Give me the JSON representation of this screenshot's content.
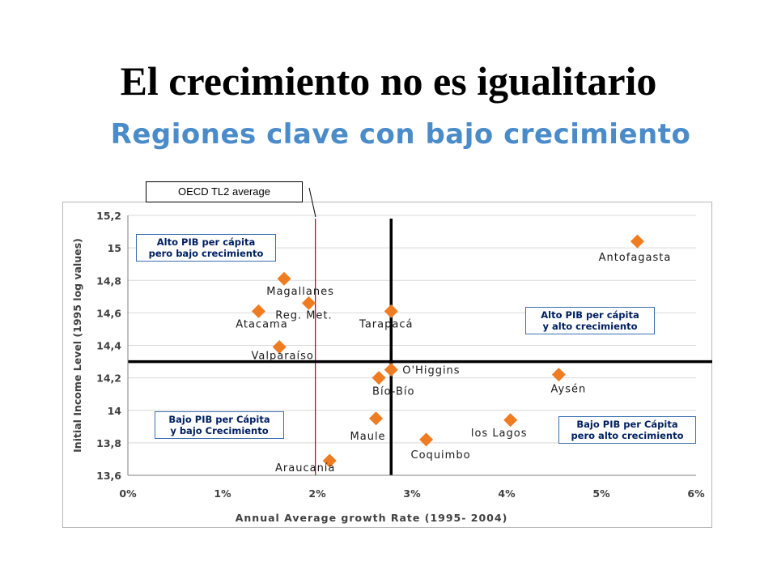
{
  "title": "El crecimiento no es igualitario",
  "subtitle": "Regiones clave con bajo crecimiento",
  "annotation_oecd": "OECD TL2 average",
  "quadrants": {
    "top_left": [
      "Alto PIB per cápita",
      "pero bajo crecimiento"
    ],
    "top_right": [
      "Alto PIB per cápita",
      "y alto crecimiento"
    ],
    "bottom_left": [
      "Bajo PIB per Cápita",
      "y bajo Crecimiento"
    ],
    "bottom_right": [
      "Bajo PIB per Cápita",
      "pero alto crecimiento"
    ]
  },
  "colors": {
    "marker": "#f07c22",
    "oecd_line": "#c00000",
    "grid": "#d9d9d9",
    "box_border": "#3a6fb0"
  },
  "chart_data": {
    "type": "scatter",
    "xlabel": "Annual Average growth Rate (1995- 2004)",
    "ylabel": "Initial Income Level (1995 log values)",
    "xlim": [
      0,
      6
    ],
    "ylim": [
      13.6,
      15.2
    ],
    "x_ticks": [
      0,
      1,
      2,
      3,
      4,
      5,
      6
    ],
    "x_tick_labels": [
      "0%",
      "1%",
      "2%",
      "3%",
      "4%",
      "5%",
      "6%"
    ],
    "y_ticks": [
      13.6,
      13.8,
      14,
      14.2,
      14.4,
      14.6,
      14.8,
      15,
      15.2
    ],
    "y_tick_labels": [
      "13,6",
      "13,8",
      "14",
      "14,2",
      "14,4",
      "14,6",
      "14,8",
      "15",
      "15,2"
    ],
    "grid": "horizontal",
    "reference_lines": {
      "oecd_x": 1.98,
      "vertical_x": 2.78,
      "horizontal_y": 14.3
    },
    "points": [
      {
        "label": "Antofagasta",
        "x": 5.38,
        "y": 15.04
      },
      {
        "label": "Magallanes",
        "x": 1.65,
        "y": 14.81
      },
      {
        "label": "Reg. Met.",
        "x": 1.91,
        "y": 14.66
      },
      {
        "label": "Atacama",
        "x": 1.38,
        "y": 14.61
      },
      {
        "label": "Tarapacá",
        "x": 2.78,
        "y": 14.61
      },
      {
        "label": "Valparaíso",
        "x": 1.6,
        "y": 14.39
      },
      {
        "label": "O'Higgins",
        "x": 2.78,
        "y": 14.25
      },
      {
        "label": "Bío-Bío",
        "x": 2.65,
        "y": 14.2
      },
      {
        "label": "Aysén",
        "x": 4.55,
        "y": 14.22
      },
      {
        "label": "Maule",
        "x": 2.62,
        "y": 13.95
      },
      {
        "label": "los Lagos",
        "x": 4.04,
        "y": 13.94
      },
      {
        "label": "Coquimbo",
        "x": 3.15,
        "y": 13.82
      },
      {
        "label": "Araucanía",
        "x": 2.13,
        "y": 13.69
      }
    ]
  }
}
